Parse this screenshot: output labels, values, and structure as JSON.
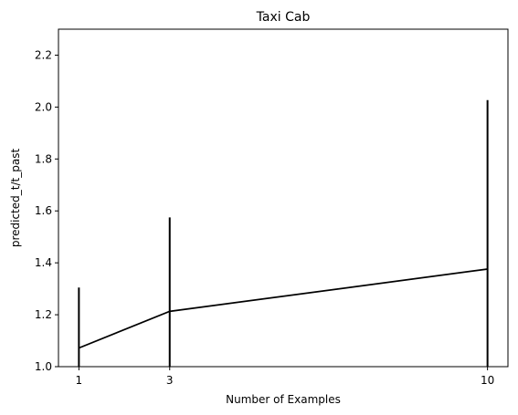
{
  "chart_data": {
    "type": "line",
    "title": "Taxi Cab",
    "xlabel": "Number of Examples",
    "ylabel": "predicted_t/t_past",
    "x": [
      1,
      3,
      10
    ],
    "y": [
      1.072,
      1.213,
      1.376
    ],
    "error_bars": [
      {
        "x": 1,
        "low": 1.0,
        "high": 1.305
      },
      {
        "x": 3,
        "low": 1.0,
        "high": 1.575
      },
      {
        "x": 10,
        "low": 1.0,
        "high": 2.027
      }
    ],
    "xlim": [
      0.55,
      10.45
    ],
    "ylim": [
      1.0,
      2.3
    ],
    "xticks": [
      1,
      3,
      10
    ],
    "xtick_labels": [
      "1",
      "3",
      "10"
    ],
    "yticks": [
      1.0,
      1.2,
      1.4,
      1.6,
      1.8,
      2.0,
      2.2
    ],
    "ytick_labels": [
      "1.0",
      "1.2",
      "1.4",
      "1.6",
      "1.8",
      "2.0",
      "2.2"
    ],
    "grid": false,
    "line_color": "#000000"
  }
}
